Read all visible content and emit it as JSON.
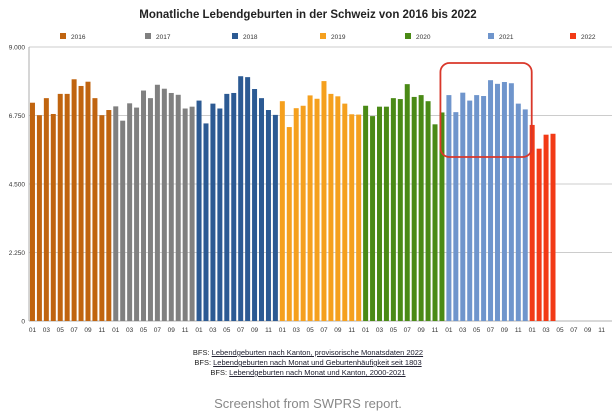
{
  "chart_data": {
    "type": "bar",
    "title": "Monatliche Lebendgeburten in der Schweiz von 2016 bis 2022",
    "xlabel": "",
    "ylabel": "",
    "ylim": [
      0,
      9000
    ],
    "y_ticks": [
      0,
      2250,
      4500,
      6750,
      9000
    ],
    "y_tick_labels": [
      "0",
      "2.250",
      "4.500",
      "6.750",
      "9.000"
    ],
    "month_tick_labels": [
      "01",
      "03",
      "05",
      "07",
      "09",
      "11"
    ],
    "grid": true,
    "legend_position": "top",
    "series": [
      {
        "name": "2016",
        "color": "#c0640f",
        "values": [
          7170,
          6760,
          7320,
          6800,
          7460,
          7460,
          7940,
          7720,
          7860,
          7320,
          6760,
          6930
        ]
      },
      {
        "name": "2017",
        "color": "#808080",
        "values": [
          7050,
          6580,
          7150,
          7010,
          7570,
          7320,
          7760,
          7630,
          7490,
          7430,
          6980,
          7040
        ]
      },
      {
        "name": "2018",
        "color": "#2c5a93",
        "values": [
          7240,
          6490,
          7140,
          6980,
          7460,
          7490,
          8040,
          8010,
          7620,
          7320,
          6930,
          6770
        ]
      },
      {
        "name": "2019",
        "color": "#f5a01e",
        "values": [
          7220,
          6370,
          6990,
          7070,
          7410,
          7300,
          7880,
          7460,
          7380,
          7140,
          6790,
          6780
        ]
      },
      {
        "name": "2020",
        "color": "#4a8a16",
        "values": [
          7070,
          6730,
          7040,
          7040,
          7320,
          7290,
          7780,
          7360,
          7420,
          7220,
          6460,
          6850
        ]
      },
      {
        "name": "2021",
        "color": "#6f95cc",
        "values": [
          7420,
          6860,
          7500,
          7240,
          7420,
          7390,
          7910,
          7790,
          7850,
          7810,
          7140,
          6950
        ]
      },
      {
        "name": "2022",
        "color": "#f23a16",
        "values": [
          6440,
          5660,
          6120,
          6150,
          null,
          null,
          null,
          null,
          null,
          null,
          null,
          null
        ]
      }
    ],
    "highlight": {
      "series": "2021",
      "color": "#d9372a"
    }
  },
  "sources": [
    {
      "prefix": "BFS:",
      "link": "Lebendgeburten nach Kanton, provisorische Monatsdaten 2022"
    },
    {
      "prefix": "BFS:",
      "link": "Lebendgeburten nach Monat und Geburtenhäufigkeit seit 1803"
    },
    {
      "prefix": "BFS:",
      "link": "Lebendgeburten nach Monat und Kanton, 2000-2021"
    }
  ],
  "caption": "Screenshot from SWPRS report."
}
